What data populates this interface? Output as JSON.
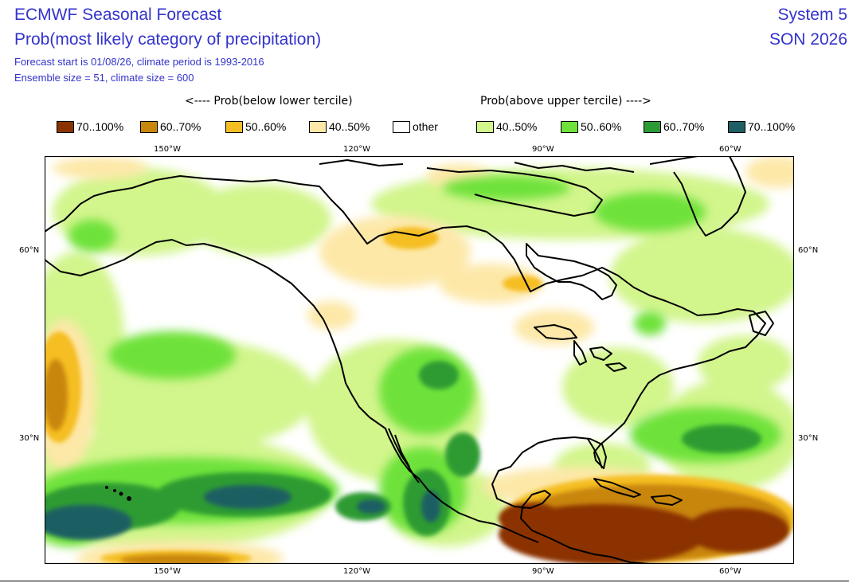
{
  "header": {
    "title": "ECMWF Seasonal Forecast",
    "subtitle": "Prob(most likely category of precipitation)",
    "forecast_info": "Forecast start is 01/08/26, climate period is 1993-2016",
    "ensemble_info": "Ensemble size = 51, climate size = 600",
    "system": "System 5",
    "season": "SON 2026"
  },
  "legend": {
    "below_title": "<---- Prob(below lower tercile)",
    "above_title": "Prob(above upper tercile) ---->",
    "items": [
      {
        "label": "70..100%",
        "color": "#8b3300"
      },
      {
        "label": "60..70%",
        "color": "#c8860a"
      },
      {
        "label": "50..60%",
        "color": "#f5be22"
      },
      {
        "label": "40..50%",
        "color": "#fde8a8"
      },
      {
        "label": "other",
        "color": "#ffffff"
      },
      {
        "label": "40..50%",
        "color": "#d2f58c"
      },
      {
        "label": "50..60%",
        "color": "#6ee23a"
      },
      {
        "label": "60..70%",
        "color": "#2d9b33"
      },
      {
        "label": "70..100%",
        "color": "#1f5f64"
      }
    ]
  },
  "axes": {
    "lon_labels": [
      "150°W",
      "120°W",
      "90°W",
      "60°W"
    ],
    "lat_labels": [
      "60°N",
      "30°N"
    ]
  },
  "map": {
    "region": "North America",
    "projection": "cylindrical lat-lon",
    "lon_range": [
      -170,
      -50
    ],
    "lat_range": [
      10,
      74
    ],
    "colors": {
      "coast": "#000000",
      "wet_40_50": "#d2f58c",
      "wet_50_60": "#6ee23a",
      "wet_60_70": "#2d9b33",
      "wet_70_100": "#1f5f64",
      "dry_40_50": "#fde8a8",
      "dry_50_60": "#f5be22",
      "dry_60_70": "#c8860a",
      "dry_70_100": "#8b3300"
    }
  }
}
